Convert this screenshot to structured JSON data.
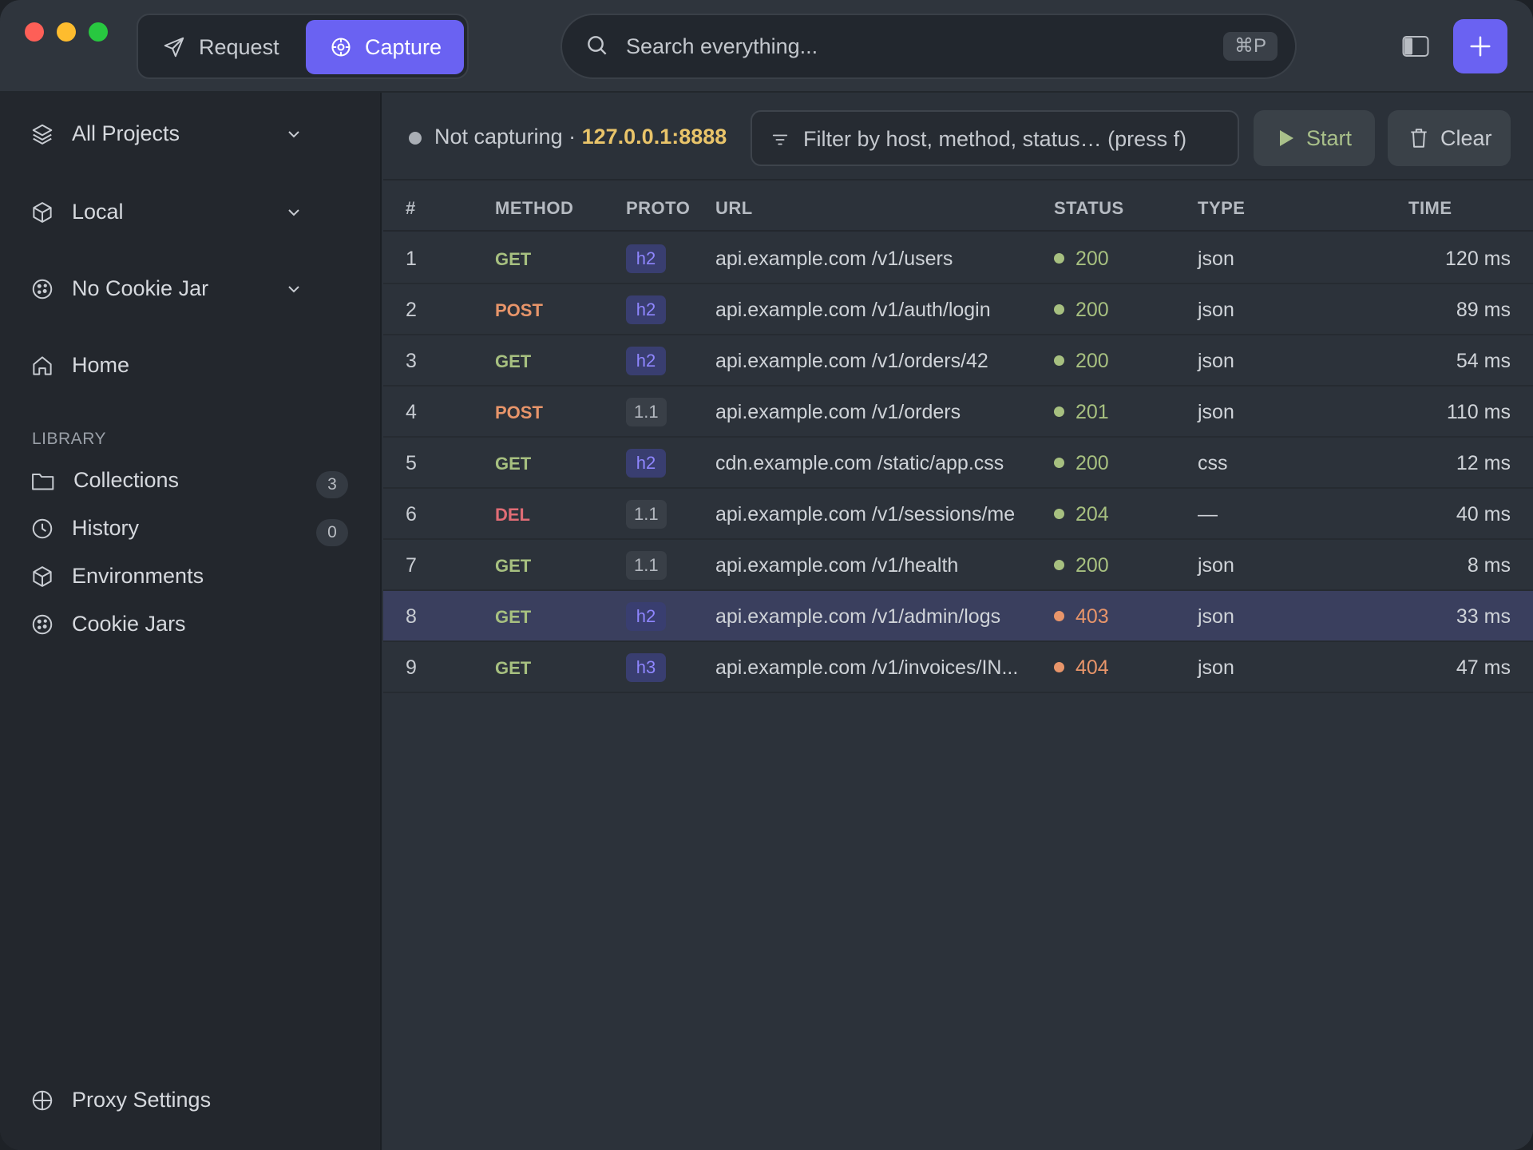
{
  "titlebar": {
    "mode_request": "Request",
    "mode_capture": "Capture",
    "search_placeholder": "Search everything...",
    "search_shortcut": "⌘P"
  },
  "sidebar": {
    "project": "All Projects",
    "environment": "Local",
    "cookie_jar": "No Cookie Jar",
    "home": "Home",
    "library_heading": "LIBRARY",
    "library": [
      {
        "label": "Collections",
        "count": "3",
        "icon": "folder-icon"
      },
      {
        "label": "History",
        "count": "0",
        "icon": "clock-icon"
      },
      {
        "label": "Environments",
        "icon": "cube-icon"
      },
      {
        "label": "Cookie Jars",
        "icon": "cookie-icon"
      }
    ],
    "proxy_settings": "Proxy Settings"
  },
  "toolbar": {
    "status": "Not capturing ·",
    "address": "127.0.0.1:8888",
    "filter_placeholder": "Filter by host, method, status…  (press f)",
    "start_label": "Start",
    "clear_label": "Clear"
  },
  "table": {
    "columns": [
      "#",
      "METHOD",
      "PROTO",
      "URL",
      "STATUS",
      "TYPE",
      "TIME"
    ],
    "rows": [
      {
        "num": "1",
        "method": "GET",
        "proto": "h2",
        "url": "api.example.com /v1/users",
        "status": "200",
        "type": "json",
        "time": "120 ms"
      },
      {
        "num": "2",
        "method": "POST",
        "proto": "h2",
        "url": "api.example.com /v1/auth/login",
        "status": "200",
        "type": "json",
        "time": "89 ms"
      },
      {
        "num": "3",
        "method": "GET",
        "proto": "h2",
        "url": "api.example.com /v1/orders/42",
        "status": "200",
        "type": "json",
        "time": "54 ms"
      },
      {
        "num": "4",
        "method": "POST",
        "proto": "1.1",
        "url": "api.example.com /v1/orders",
        "status": "201",
        "type": "json",
        "time": "110 ms"
      },
      {
        "num": "5",
        "method": "GET",
        "proto": "h2",
        "url": "cdn.example.com /static/app.css",
        "status": "200",
        "type": "css",
        "time": "12 ms"
      },
      {
        "num": "6",
        "method": "DEL",
        "proto": "1.1",
        "url": "api.example.com /v1/sessions/me",
        "status": "204",
        "type": "—",
        "time": "40 ms"
      },
      {
        "num": "7",
        "method": "GET",
        "proto": "1.1",
        "url": "api.example.com /v1/health",
        "status": "200",
        "type": "json",
        "time": "8 ms"
      },
      {
        "num": "8",
        "method": "GET",
        "proto": "h2",
        "url": "api.example.com /v1/admin/logs",
        "status": "403",
        "type": "json",
        "time": "33 ms",
        "selected": true
      },
      {
        "num": "9",
        "method": "GET",
        "proto": "h3",
        "url": "api.example.com /v1/invoices/IN...",
        "status": "404",
        "type": "json",
        "time": "47 ms"
      }
    ]
  },
  "colors": {
    "accent": "#6a62f2",
    "method_get": "#a7c080",
    "method_post": "#e8956a",
    "method_del": "#e06c75",
    "status_ok": "#a7c080",
    "status_error": "#e8956a",
    "address": "#e9c46a"
  }
}
